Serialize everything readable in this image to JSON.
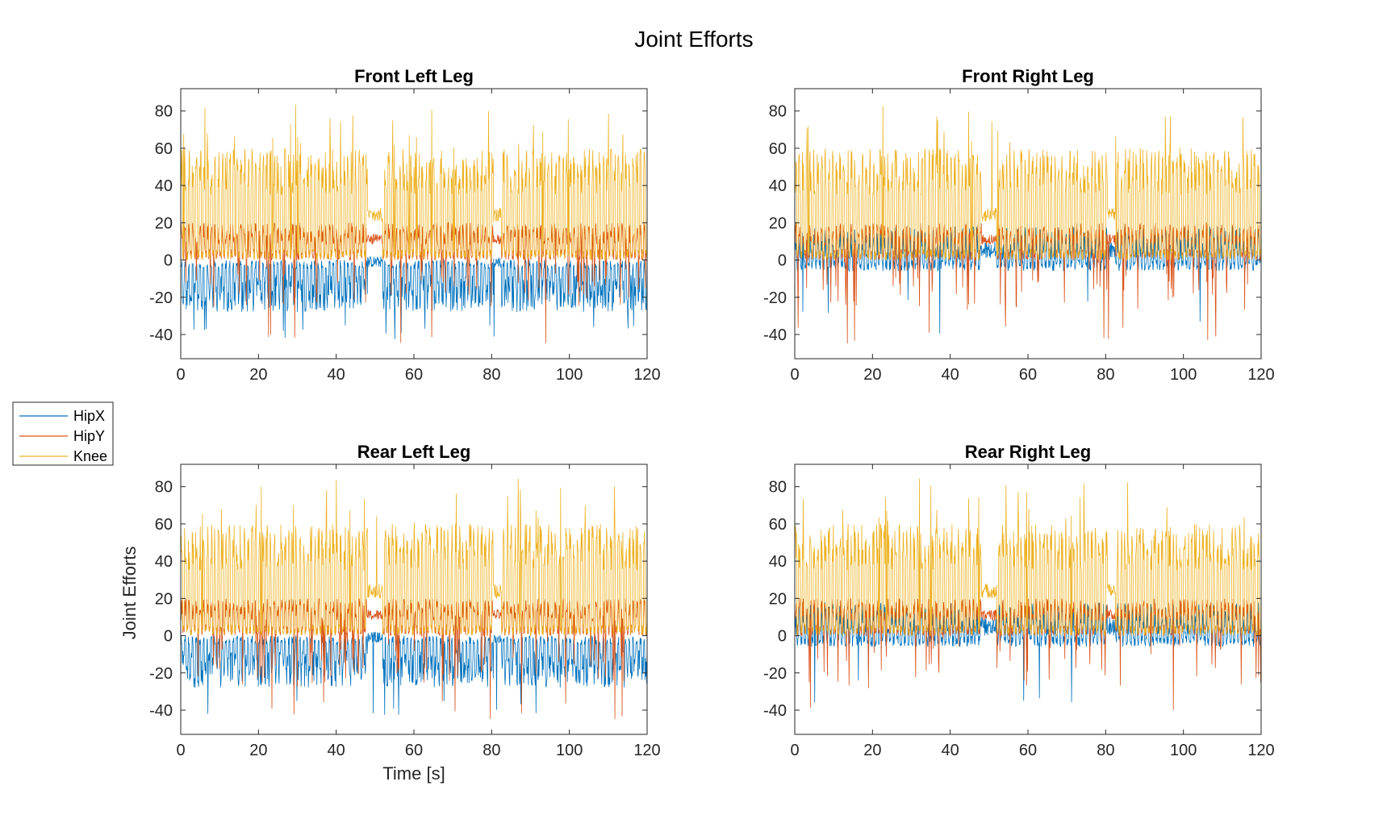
{
  "figure": {
    "title": "Joint Efforts",
    "legend": {
      "placement": "left, between rows",
      "entries": [
        {
          "name": "HipX",
          "color": "#0072BD"
        },
        {
          "name": "HipY",
          "color": "#D95319"
        },
        {
          "name": "Knee",
          "color": "#EDB120"
        }
      ]
    }
  },
  "chart_data": [
    {
      "type": "line",
      "title": "Front Left Leg",
      "xlabel": "",
      "ylabel": "",
      "xlim": [
        0,
        120
      ],
      "ylim": [
        -53,
        92
      ],
      "xticks": [
        0,
        20,
        40,
        60,
        80,
        100,
        120
      ],
      "yticks": [
        -40,
        -20,
        0,
        20,
        40,
        60,
        80
      ],
      "grid": false,
      "series": [
        {
          "name": "HipX",
          "approx_range": [
            -42,
            5
          ]
        },
        {
          "name": "HipY",
          "approx_range": [
            -53,
            20
          ]
        },
        {
          "name": "Knee",
          "approx_range": [
            0,
            78
          ]
        }
      ]
    },
    {
      "type": "line",
      "title": "Front Right Leg",
      "xlabel": "",
      "ylabel": "",
      "xlim": [
        0,
        120
      ],
      "ylim": [
        -53,
        92
      ],
      "xticks": [
        0,
        20,
        40,
        60,
        80,
        100,
        120
      ],
      "yticks": [
        -40,
        -20,
        0,
        20,
        40,
        60,
        80
      ],
      "grid": false,
      "series": [
        {
          "name": "HipX",
          "approx_range": [
            -30,
            30
          ]
        },
        {
          "name": "HipY",
          "approx_range": [
            -40,
            20
          ]
        },
        {
          "name": "Knee",
          "approx_range": [
            0,
            75
          ]
        }
      ]
    },
    {
      "type": "line",
      "title": "Rear Left Leg",
      "xlabel": "Time [s]",
      "ylabel": "Joint Efforts",
      "xlim": [
        0,
        120
      ],
      "ylim": [
        -53,
        92
      ],
      "xticks": [
        0,
        20,
        40,
        60,
        80,
        100,
        120
      ],
      "yticks": [
        -40,
        -20,
        0,
        20,
        40,
        60,
        80
      ],
      "grid": false,
      "series": [
        {
          "name": "HipX",
          "approx_range": [
            -47,
            10
          ]
        },
        {
          "name": "HipY",
          "approx_range": [
            -43,
            40
          ]
        },
        {
          "name": "Knee",
          "approx_range": [
            0,
            92
          ]
        }
      ]
    },
    {
      "type": "line",
      "title": "Rear Right Leg",
      "xlabel": "",
      "ylabel": "",
      "xlim": [
        0,
        120
      ],
      "ylim": [
        -53,
        92
      ],
      "xticks": [
        0,
        20,
        40,
        60,
        80,
        100,
        120
      ],
      "yticks": [
        -40,
        -20,
        0,
        20,
        40,
        60,
        80
      ],
      "grid": false,
      "series": [
        {
          "name": "HipX",
          "approx_range": [
            -45,
            40
          ]
        },
        {
          "name": "HipY",
          "approx_range": [
            -45,
            25
          ]
        },
        {
          "name": "Knee",
          "approx_range": [
            0,
            82
          ]
        }
      ]
    }
  ]
}
